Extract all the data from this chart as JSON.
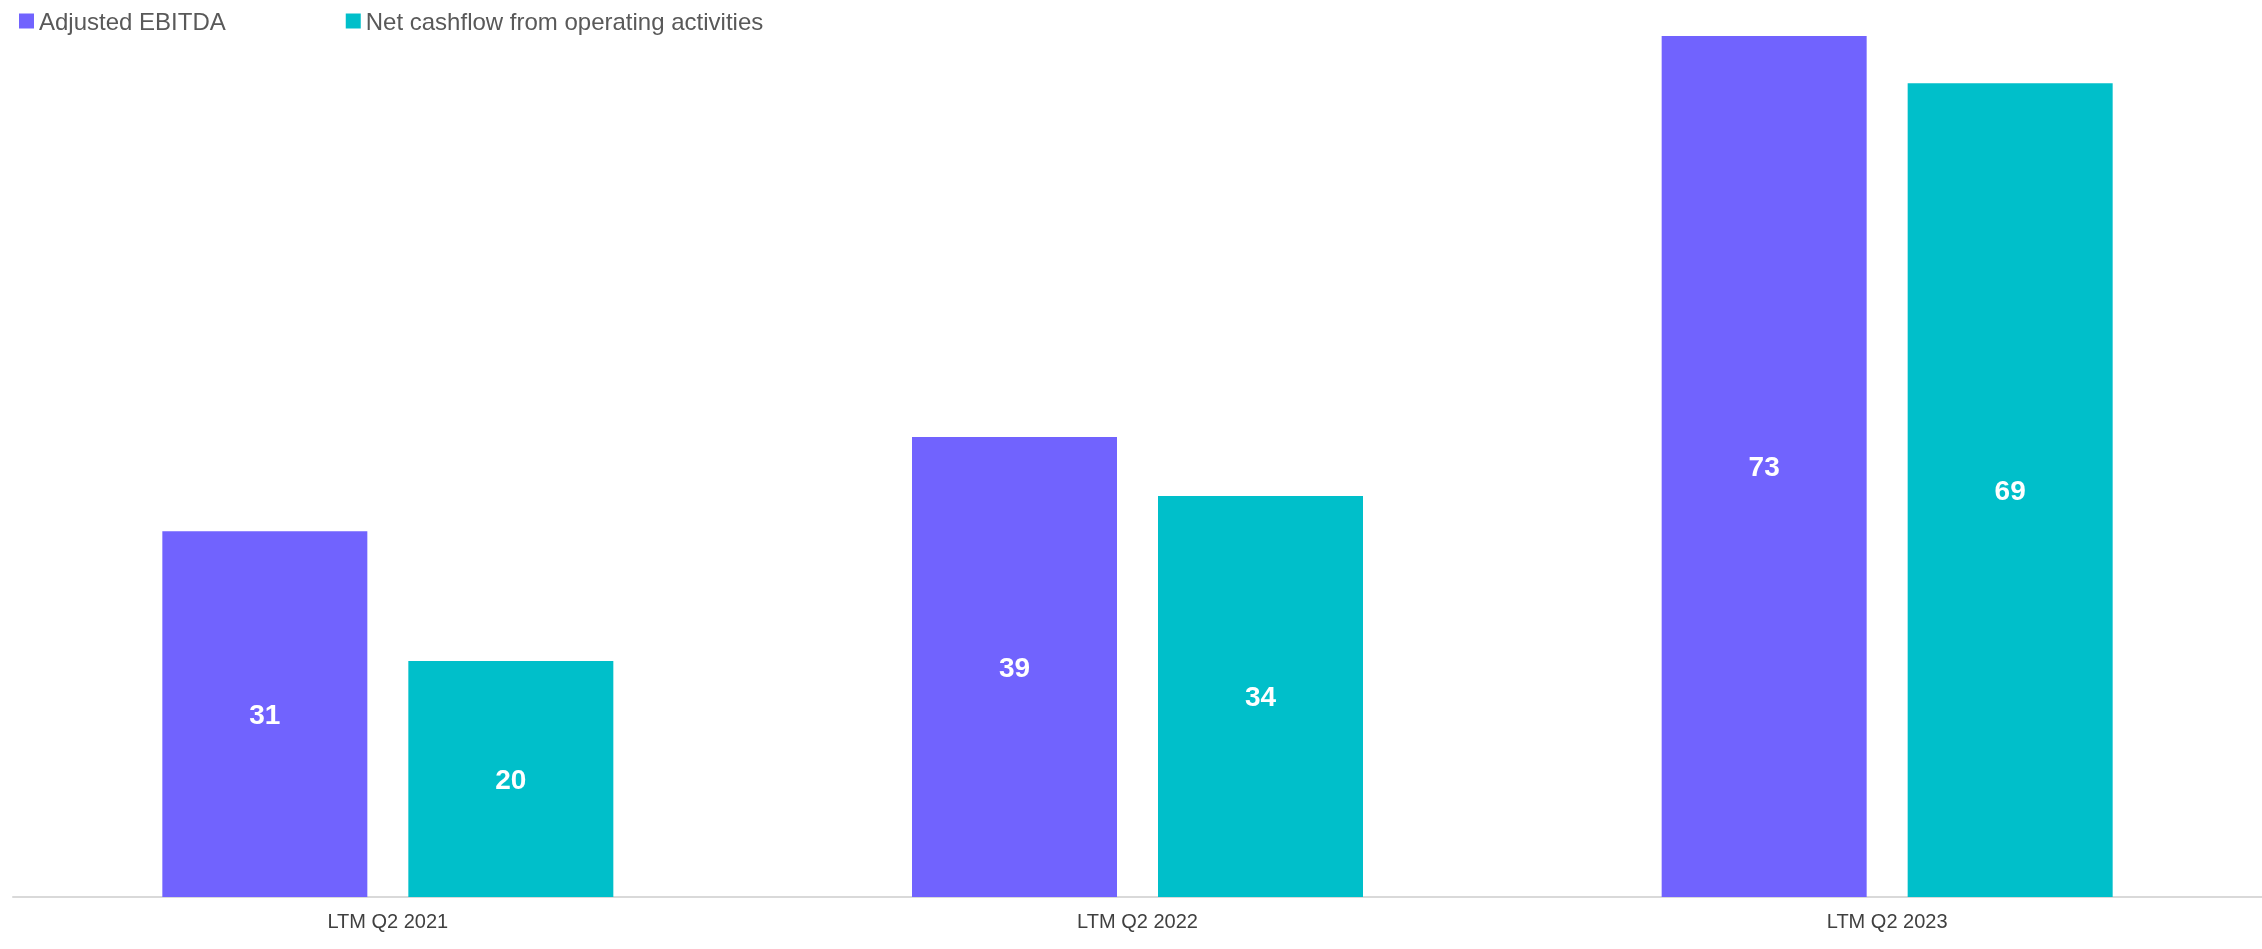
{
  "chart_data": {
    "type": "bar",
    "categories": [
      "LTM Q2 2021",
      "LTM Q2 2022",
      "LTM Q2 2023"
    ],
    "series": [
      {
        "name": "Adjusted EBITDA",
        "color": "#7163fe",
        "values": [
          31,
          39,
          73
        ]
      },
      {
        "name": "Net cashflow from operating activities",
        "color": "#00bfca",
        "values": [
          20,
          34,
          69
        ]
      }
    ],
    "data_labels": true,
    "legend": "top left"
  }
}
